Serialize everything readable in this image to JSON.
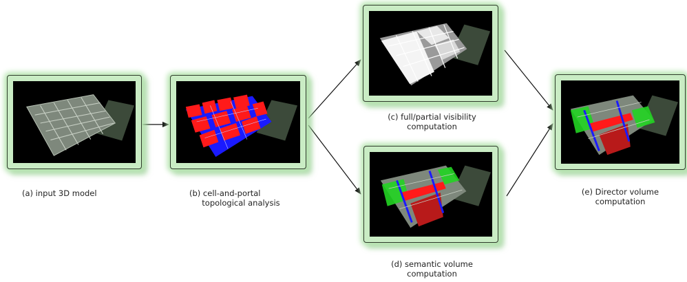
{
  "panels": [
    {
      "id": "a",
      "caption": "(a) input 3D model"
    },
    {
      "id": "b",
      "caption": "(b) cell-and-portal\n     topological analysis"
    },
    {
      "id": "c",
      "caption": "(c) full/partial visibility\ncomputation"
    },
    {
      "id": "d",
      "caption": "(d) semantic volume\ncomputation"
    },
    {
      "id": "e",
      "caption": "(e) Director volume\ncomputation"
    }
  ],
  "colors": {
    "panel_glow": "#b8e6b2",
    "screen_bg": "#000000",
    "model_floor": "#8a9488",
    "model_wall": "#c5cec2",
    "portal_red": "#ff1a1a",
    "portal_blue": "#1a1aff",
    "visibility_white": "#f4f4f4",
    "semantic_green": "#22d422",
    "semantic_red": "#b81a1a"
  }
}
